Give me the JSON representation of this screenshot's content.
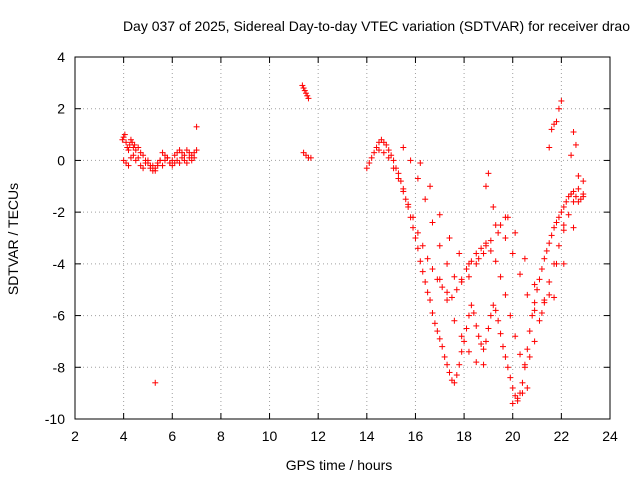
{
  "chart_data": {
    "type": "scatter",
    "title": "Day 037 of 2025, Sidereal Day-to-day VTEC variation (SDTVAR) for receiver drao",
    "xlabel": "GPS time / hours",
    "ylabel": "SDTVAR / TECUs",
    "xlim": [
      2,
      24
    ],
    "ylim": [
      -10,
      4
    ],
    "xticks": [
      2,
      4,
      6,
      8,
      10,
      12,
      14,
      16,
      18,
      20,
      22,
      24
    ],
    "yticks": [
      -10,
      -8,
      -6,
      -4,
      -2,
      0,
      2,
      4
    ],
    "grid": true,
    "marker": "+",
    "series": [
      {
        "name": "SDTVAR",
        "color": "#ff0000",
        "x": [
          3.95,
          4.0,
          4.05,
          4.1,
          4.15,
          4.2,
          4.25,
          4.3,
          4.35,
          4.4,
          4.45,
          4.5,
          4.6,
          4.7,
          4.8,
          4.9,
          5.0,
          5.1,
          5.2,
          5.3,
          5.4,
          5.5,
          5.6,
          5.7,
          5.8,
          5.9,
          6.0,
          6.1,
          6.2,
          6.3,
          6.4,
          6.5,
          6.6,
          6.7,
          6.8,
          6.9,
          7.0,
          4.0,
          4.1,
          4.2,
          4.3,
          4.4,
          4.5,
          4.6,
          4.7,
          4.8,
          4.9,
          5.0,
          5.1,
          5.2,
          5.3,
          5.4,
          5.5,
          5.6,
          5.7,
          5.8,
          5.9,
          6.0,
          6.1,
          6.2,
          6.3,
          6.4,
          6.5,
          6.6,
          6.7,
          6.8,
          6.9,
          7.0,
          5.3,
          11.35,
          11.4,
          11.45,
          11.5,
          11.55,
          11.6,
          11.4,
          11.5,
          11.6,
          11.7,
          14.0,
          14.1,
          14.2,
          14.3,
          14.4,
          14.5,
          14.6,
          14.7,
          14.8,
          14.9,
          15.0,
          15.1,
          15.2,
          15.3,
          15.4,
          15.5,
          15.6,
          15.7,
          15.8,
          15.9,
          16.0,
          16.1,
          16.2,
          16.3,
          16.4,
          16.5,
          16.6,
          16.7,
          16.8,
          16.9,
          17.0,
          17.1,
          17.2,
          17.3,
          17.4,
          17.5,
          17.6,
          17.7,
          17.8,
          17.9,
          18.0,
          18.1,
          18.2,
          18.3,
          18.4,
          18.5,
          18.6,
          18.7,
          18.8,
          18.9,
          19.0,
          19.1,
          19.2,
          19.3,
          19.4,
          19.5,
          19.6,
          19.7,
          19.8,
          19.9,
          20.0,
          20.1,
          20.2,
          20.3,
          20.4,
          20.5,
          20.6,
          20.7,
          20.8,
          20.9,
          21.0,
          21.1,
          21.2,
          21.3,
          21.4,
          21.5,
          21.6,
          21.7,
          21.8,
          21.9,
          22.0,
          22.1,
          22.2,
          22.3,
          22.4,
          22.5,
          22.6,
          22.7,
          22.8,
          22.9,
          14.5,
          14.7,
          14.9,
          15.1,
          15.3,
          15.5,
          15.7,
          15.9,
          16.1,
          16.3,
          16.5,
          16.7,
          16.9,
          17.1,
          17.3,
          17.5,
          17.7,
          17.9,
          18.1,
          18.3,
          18.5,
          18.7,
          18.9,
          19.1,
          19.3,
          19.5,
          19.7,
          19.9,
          20.1,
          20.3,
          20.5,
          20.7,
          20.9,
          21.1,
          21.3,
          21.5,
          21.7,
          21.9,
          22.1,
          22.3,
          22.5,
          22.7,
          22.9,
          15.5,
          15.8,
          16.1,
          16.4,
          16.7,
          17.0,
          17.3,
          17.6,
          17.9,
          18.2,
          18.5,
          18.8,
          19.1,
          19.4,
          19.7,
          20.0,
          20.3,
          20.6,
          20.9,
          21.2,
          21.5,
          21.8,
          22.1,
          22.4,
          22.7,
          16.2,
          16.6,
          17.0,
          17.4,
          17.8,
          18.2,
          18.6,
          18.9,
          19.3,
          19.7,
          20.1,
          20.5,
          20.9,
          21.3,
          21.7,
          22.1,
          22.5,
          22.9,
          17.0,
          17.3,
          17.6,
          17.9,
          18.2,
          18.5,
          18.8,
          18.9,
          19.0,
          19.2,
          19.5,
          19.8,
          20.0,
          20.2,
          20.4,
          20.6,
          21.5,
          21.6,
          21.7,
          21.8,
          21.9,
          22.0,
          22.4,
          22.5,
          22.6
        ],
        "y": [
          0.8,
          0.9,
          1.0,
          0.7,
          0.5,
          0.4,
          0.6,
          0.8,
          0.7,
          0.5,
          0.6,
          0.4,
          0.5,
          0.3,
          0.2,
          0.0,
          -0.1,
          -0.3,
          -0.2,
          -0.4,
          -0.2,
          0.0,
          0.3,
          0.2,
          0.1,
          -0.1,
          0.0,
          0.2,
          0.3,
          0.4,
          0.3,
          0.2,
          0.4,
          0.3,
          0.2,
          0.3,
          0.4,
          0.0,
          -0.1,
          -0.2,
          0.1,
          0.2,
          0.0,
          0.1,
          -0.2,
          -0.3,
          -0.1,
          0.0,
          -0.2,
          -0.4,
          -0.3,
          -0.1,
          0.0,
          -0.2,
          0.0,
          0.1,
          -0.1,
          -0.2,
          -0.1,
          0.0,
          -0.1,
          0.1,
          0.0,
          -0.1,
          0.1,
          0.0,
          0.1,
          1.3,
          -8.6,
          2.9,
          2.8,
          2.7,
          2.6,
          2.5,
          2.4,
          0.3,
          0.2,
          0.1,
          0.1,
          -0.3,
          -0.1,
          0.1,
          0.3,
          0.5,
          0.7,
          0.8,
          0.7,
          0.6,
          0.4,
          0.2,
          0.0,
          -0.3,
          -0.5,
          -0.8,
          -1.1,
          -1.5,
          -1.8,
          -2.2,
          -2.6,
          -3.0,
          -3.4,
          -3.9,
          -4.3,
          -4.7,
          -5.1,
          -5.4,
          -5.9,
          -6.3,
          -6.6,
          -6.9,
          -7.2,
          -7.6,
          -7.9,
          -8.2,
          -8.5,
          -8.6,
          -8.3,
          -7.9,
          -7.4,
          -7.0,
          -6.5,
          -6.0,
          -5.6,
          -5.9,
          -6.4,
          -6.8,
          -7.1,
          -7.3,
          -7.0,
          -6.5,
          -6.0,
          -5.6,
          -5.8,
          -6.2,
          -6.7,
          -7.2,
          -7.6,
          -8.0,
          -8.4,
          -8.8,
          -9.1,
          -9.3,
          -9.0,
          -8.6,
          -8.0,
          -7.3,
          -6.6,
          -6.0,
          -5.5,
          -5.0,
          -4.6,
          -4.2,
          -3.8,
          -3.5,
          -3.2,
          -2.9,
          -2.6,
          -2.4,
          -2.2,
          -2.0,
          -1.8,
          -1.6,
          -1.4,
          -1.3,
          -1.2,
          -1.4,
          -1.6,
          -1.5,
          -1.3,
          0.4,
          0.3,
          0.1,
          -0.3,
          -0.7,
          -1.2,
          -1.7,
          -2.2,
          -2.8,
          -3.3,
          -3.8,
          -4.2,
          -4.6,
          -4.9,
          -5.1,
          -5.3,
          -5.0,
          -4.6,
          -4.2,
          -3.9,
          -3.6,
          -3.4,
          -3.3,
          -3.5,
          -3.9,
          -4.5,
          -5.2,
          -6.0,
          -6.8,
          -7.5,
          -7.9,
          -7.6,
          -7.0,
          -6.2,
          -5.4,
          -4.7,
          -4.0,
          -3.3,
          -2.7,
          -2.1,
          -1.6,
          -1.1,
          -0.8,
          0.5,
          0.0,
          -0.7,
          -1.5,
          -2.4,
          -3.3,
          -4.0,
          -4.5,
          -4.7,
          -4.5,
          -4.0,
          -3.6,
          -3.1,
          -2.8,
          -3.0,
          -3.6,
          -4.4,
          -5.2,
          -5.8,
          -5.9,
          -5.2,
          -4.0,
          -2.5,
          -1.3,
          -0.6,
          -0.1,
          -1.0,
          -2.1,
          -3.0,
          -3.6,
          -4.0,
          -3.8,
          -3.2,
          -2.5,
          -2.2,
          -2.8,
          -3.8,
          -4.8,
          -5.5,
          -5.3,
          -4.0,
          -2.6,
          -1.4,
          -4.6,
          -5.4,
          -6.2,
          -6.8,
          -7.4,
          -7.8,
          -7.9,
          -1.0,
          -0.5,
          -1.8,
          -2.5,
          -2.2,
          -9.4,
          -9.2,
          -9.0,
          -8.8,
          0.5,
          1.2,
          1.4,
          1.5,
          2.0,
          2.3,
          0.2,
          1.1,
          0.6
        ]
      }
    ]
  }
}
